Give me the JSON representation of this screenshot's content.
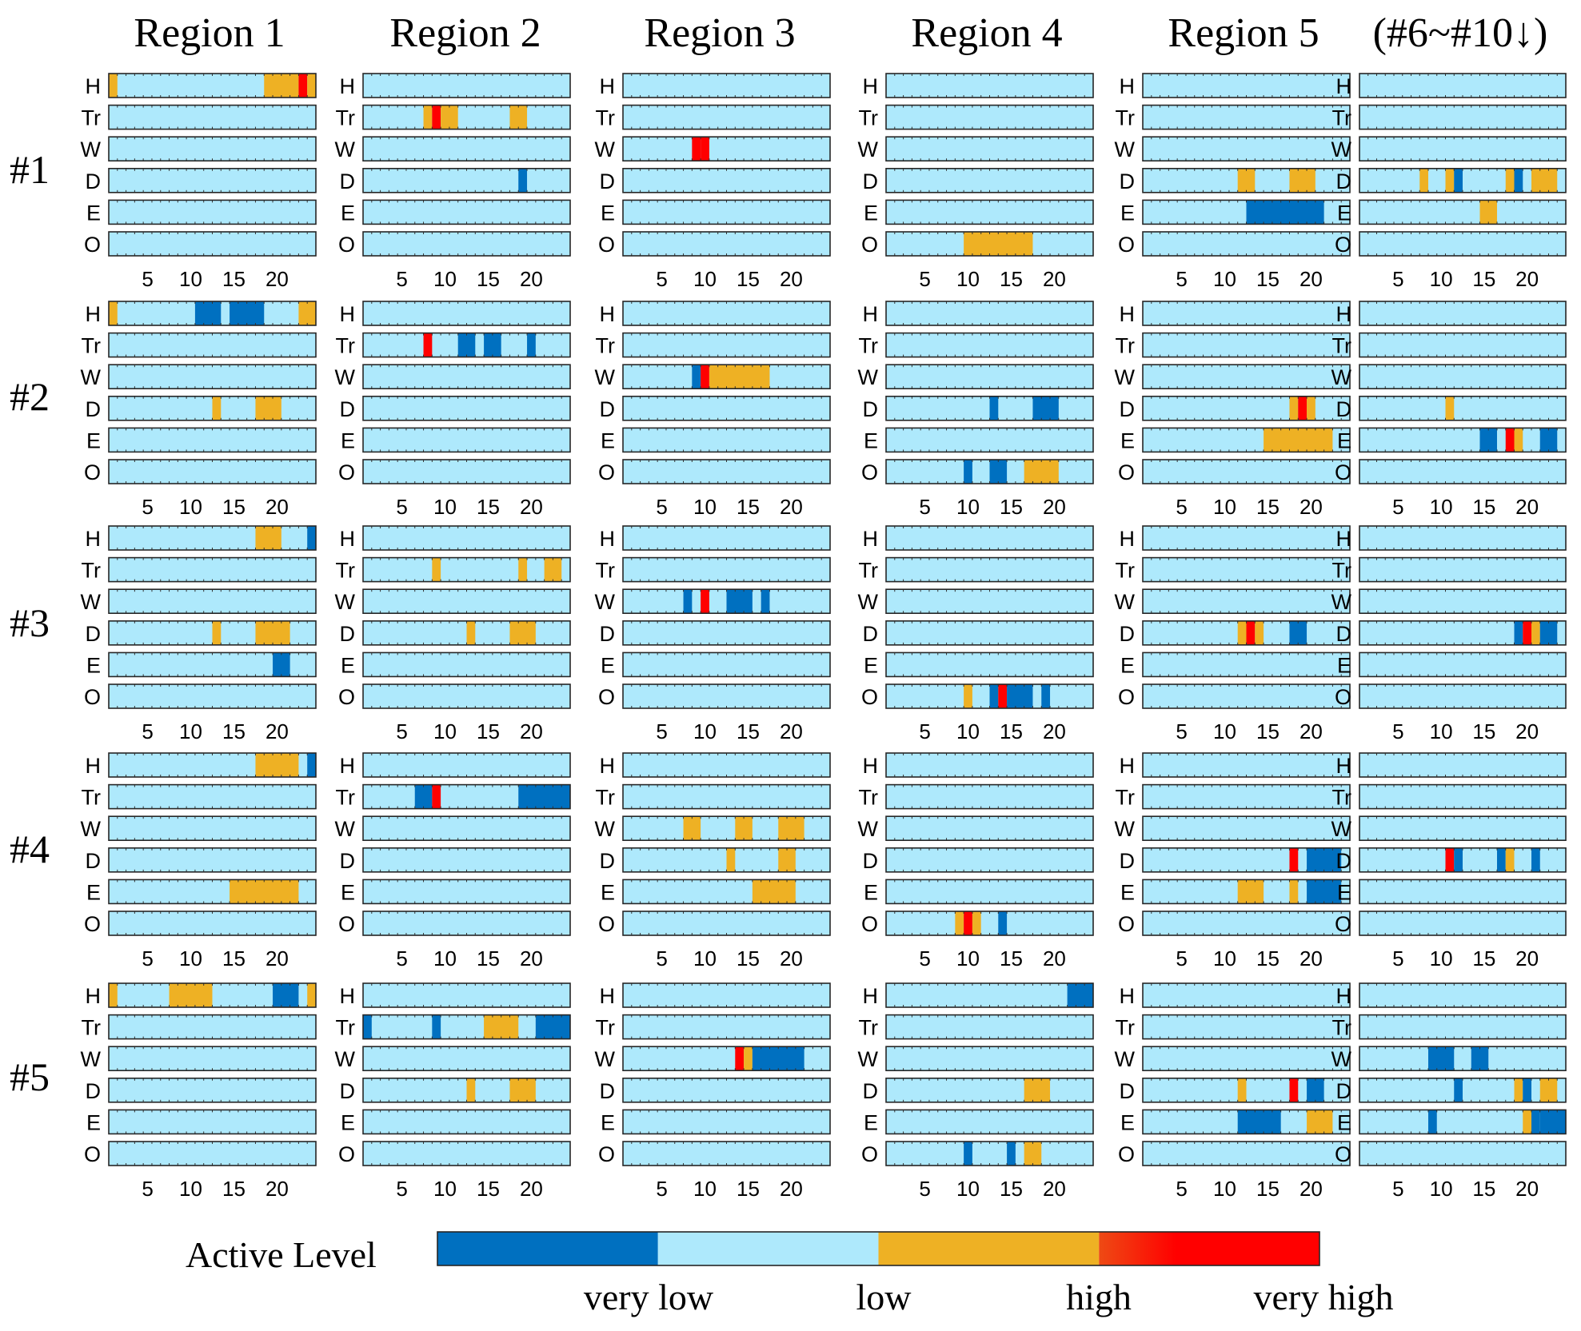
{
  "chart_data": {
    "type": "heatmap",
    "title": "",
    "column_titles": [
      "Region 1",
      "Region 2",
      "Region 3",
      "Region 4",
      "Region 5",
      "(#6~#10↓)"
    ],
    "row_titles": [
      "#1",
      "#2",
      "#3",
      "#4",
      "#5"
    ],
    "activities": [
      "H",
      "Tr",
      "W",
      "D",
      "E",
      "O"
    ],
    "hours_range": [
      1,
      24
    ],
    "xticks": [
      5,
      10,
      15,
      20
    ],
    "level_names": [
      "very low",
      "low",
      "high",
      "very high"
    ],
    "colors": {
      "very_low": "#0070c0",
      "low": "#aee9fc",
      "high": "#eeb124",
      "very_high": "#ff0000"
    },
    "colorbar_label": "Active Level",
    "encoding": "Each panel shows 6 activity rows over 24 hours. Default level is 'low'. Segments list [start_hour, end_hour, level] with levels: vl=very low, h=high, vh=very high.",
    "panels": [
      [
        {
          "H": [
            [
              1,
              1,
              "h"
            ],
            [
              19,
              22,
              "h"
            ],
            [
              23,
              23,
              "vh"
            ],
            [
              24,
              24,
              "h"
            ]
          ],
          "Tr": [],
          "W": [],
          "D": [],
          "E": [],
          "O": []
        },
        {
          "H": [],
          "Tr": [
            [
              8,
              8,
              "h"
            ],
            [
              9,
              9,
              "vh"
            ],
            [
              10,
              11,
              "h"
            ],
            [
              18,
              19,
              "h"
            ]
          ],
          "W": [],
          "D": [
            [
              19,
              19,
              "vl"
            ]
          ],
          "E": [],
          "O": []
        },
        {
          "H": [],
          "Tr": [],
          "W": [
            [
              9,
              9,
              "vh"
            ],
            [
              10,
              10,
              "vh"
            ]
          ],
          "D": [],
          "E": [],
          "O": []
        },
        {
          "H": [],
          "Tr": [],
          "W": [],
          "D": [],
          "E": [],
          "O": [
            [
              10,
              17,
              "h"
            ]
          ]
        },
        {
          "H": [],
          "Tr": [],
          "W": [],
          "D": [
            [
              12,
              13,
              "h"
            ],
            [
              18,
              20,
              "h"
            ]
          ],
          "E": [
            [
              13,
              21,
              "vl"
            ]
          ],
          "O": []
        },
        {
          "H": [],
          "Tr": [],
          "W": [],
          "D": [
            [
              8,
              8,
              "h"
            ],
            [
              11,
              11,
              "h"
            ],
            [
              12,
              12,
              "vl"
            ],
            [
              18,
              18,
              "h"
            ],
            [
              19,
              19,
              "vl"
            ],
            [
              21,
              23,
              "h"
            ]
          ],
          "E": [
            [
              15,
              16,
              "h"
            ]
          ],
          "O": []
        }
      ],
      [
        {
          "H": [
            [
              1,
              1,
              "h"
            ],
            [
              11,
              13,
              "vl"
            ],
            [
              15,
              18,
              "vl"
            ],
            [
              23,
              24,
              "h"
            ]
          ],
          "Tr": [],
          "W": [],
          "D": [
            [
              13,
              13,
              "h"
            ],
            [
              18,
              20,
              "h"
            ]
          ],
          "E": [],
          "O": []
        },
        {
          "H": [],
          "Tr": [
            [
              8,
              8,
              "vh"
            ],
            [
              12,
              13,
              "vl"
            ],
            [
              15,
              16,
              "vl"
            ],
            [
              20,
              20,
              "vl"
            ]
          ],
          "W": [],
          "D": [],
          "E": [],
          "O": []
        },
        {
          "H": [],
          "Tr": [],
          "W": [
            [
              9,
              9,
              "vl"
            ],
            [
              10,
              10,
              "vh"
            ],
            [
              11,
              17,
              "h"
            ]
          ],
          "D": [],
          "E": [],
          "O": []
        },
        {
          "H": [],
          "Tr": [],
          "W": [],
          "D": [
            [
              13,
              13,
              "vl"
            ],
            [
              18,
              20,
              "vl"
            ]
          ],
          "E": [],
          "O": [
            [
              10,
              10,
              "vl"
            ],
            [
              13,
              14,
              "vl"
            ],
            [
              17,
              20,
              "h"
            ]
          ]
        },
        {
          "H": [],
          "Tr": [],
          "W": [],
          "D": [
            [
              18,
              18,
              "h"
            ],
            [
              19,
              19,
              "vh"
            ],
            [
              20,
              20,
              "h"
            ]
          ],
          "E": [
            [
              15,
              22,
              "h"
            ]
          ],
          "O": []
        },
        {
          "H": [],
          "Tr": [],
          "W": [],
          "D": [
            [
              11,
              11,
              "h"
            ]
          ],
          "E": [
            [
              15,
              16,
              "vl"
            ],
            [
              18,
              18,
              "vh"
            ],
            [
              19,
              19,
              "h"
            ],
            [
              22,
              23,
              "vl"
            ]
          ],
          "O": []
        }
      ],
      [
        {
          "H": [
            [
              18,
              20,
              "h"
            ],
            [
              24,
              24,
              "vl"
            ]
          ],
          "Tr": [],
          "W": [],
          "D": [
            [
              13,
              13,
              "h"
            ],
            [
              18,
              21,
              "h"
            ]
          ],
          "E": [
            [
              20,
              21,
              "vl"
            ]
          ],
          "O": []
        },
        {
          "H": [],
          "Tr": [
            [
              9,
              9,
              "h"
            ],
            [
              19,
              19,
              "h"
            ],
            [
              22,
              23,
              "h"
            ]
          ],
          "W": [],
          "D": [
            [
              13,
              13,
              "h"
            ],
            [
              18,
              20,
              "h"
            ]
          ],
          "E": [],
          "O": []
        },
        {
          "H": [],
          "Tr": [],
          "W": [
            [
              8,
              8,
              "vl"
            ],
            [
              10,
              10,
              "vh"
            ],
            [
              13,
              15,
              "vl"
            ],
            [
              17,
              17,
              "vl"
            ]
          ],
          "D": [],
          "E": [],
          "O": []
        },
        {
          "H": [],
          "Tr": [],
          "W": [],
          "D": [],
          "E": [],
          "O": [
            [
              10,
              10,
              "h"
            ],
            [
              13,
              13,
              "vl"
            ],
            [
              14,
              14,
              "vh"
            ],
            [
              15,
              17,
              "vl"
            ],
            [
              19,
              19,
              "vl"
            ]
          ]
        },
        {
          "H": [],
          "Tr": [],
          "W": [],
          "D": [
            [
              12,
              12,
              "h"
            ],
            [
              13,
              13,
              "vh"
            ],
            [
              14,
              14,
              "h"
            ],
            [
              18,
              19,
              "vl"
            ]
          ],
          "E": [],
          "O": []
        },
        {
          "H": [],
          "Tr": [],
          "W": [],
          "D": [
            [
              19,
              19,
              "vl"
            ],
            [
              20,
              20,
              "vh"
            ],
            [
              21,
              21,
              "h"
            ],
            [
              22,
              23,
              "vl"
            ]
          ],
          "E": [],
          "O": []
        }
      ],
      [
        {
          "H": [
            [
              18,
              22,
              "h"
            ],
            [
              24,
              24,
              "vl"
            ]
          ],
          "Tr": [],
          "W": [],
          "D": [],
          "E": [
            [
              15,
              22,
              "h"
            ]
          ],
          "O": []
        },
        {
          "H": [],
          "Tr": [
            [
              7,
              8,
              "vl"
            ],
            [
              9,
              9,
              "vh"
            ],
            [
              19,
              24,
              "vl"
            ]
          ],
          "W": [],
          "D": [],
          "E": [],
          "O": []
        },
        {
          "H": [],
          "Tr": [],
          "W": [
            [
              8,
              9,
              "h"
            ],
            [
              14,
              15,
              "h"
            ],
            [
              19,
              21,
              "h"
            ]
          ],
          "D": [
            [
              13,
              13,
              "h"
            ],
            [
              19,
              20,
              "h"
            ]
          ],
          "E": [
            [
              16,
              20,
              "h"
            ]
          ],
          "O": []
        },
        {
          "H": [],
          "Tr": [],
          "W": [],
          "D": [],
          "E": [],
          "O": [
            [
              9,
              9,
              "h"
            ],
            [
              10,
              10,
              "vh"
            ],
            [
              11,
              11,
              "h"
            ],
            [
              14,
              14,
              "vl"
            ]
          ]
        },
        {
          "H": [],
          "Tr": [],
          "W": [],
          "D": [
            [
              18,
              18,
              "vh"
            ],
            [
              20,
              23,
              "vl"
            ]
          ],
          "E": [
            [
              12,
              14,
              "h"
            ],
            [
              18,
              18,
              "h"
            ],
            [
              20,
              23,
              "vl"
            ]
          ],
          "O": []
        },
        {
          "H": [],
          "Tr": [],
          "W": [],
          "D": [
            [
              11,
              11,
              "vh"
            ],
            [
              12,
              12,
              "vl"
            ],
            [
              17,
              17,
              "vl"
            ],
            [
              18,
              18,
              "h"
            ],
            [
              21,
              21,
              "vl"
            ]
          ],
          "E": [],
          "O": []
        }
      ],
      [
        {
          "H": [
            [
              1,
              1,
              "h"
            ],
            [
              8,
              12,
              "h"
            ],
            [
              20,
              22,
              "vl"
            ],
            [
              24,
              24,
              "h"
            ]
          ],
          "Tr": [],
          "W": [],
          "D": [],
          "E": [],
          "O": []
        },
        {
          "H": [],
          "Tr": [
            [
              1,
              1,
              "vl"
            ],
            [
              9,
              9,
              "vl"
            ],
            [
              15,
              18,
              "h"
            ],
            [
              21,
              24,
              "vl"
            ]
          ],
          "W": [],
          "D": [
            [
              13,
              13,
              "h"
            ],
            [
              18,
              20,
              "h"
            ]
          ],
          "E": [],
          "O": []
        },
        {
          "H": [],
          "Tr": [],
          "W": [
            [
              14,
              14,
              "vh"
            ],
            [
              15,
              15,
              "h"
            ],
            [
              16,
              21,
              "vl"
            ]
          ],
          "D": [],
          "E": [],
          "O": []
        },
        {
          "H": [
            [
              22,
              24,
              "vl"
            ]
          ],
          "Tr": [],
          "W": [],
          "D": [
            [
              17,
              19,
              "h"
            ]
          ],
          "E": [],
          "O": [
            [
              10,
              10,
              "vl"
            ],
            [
              15,
              15,
              "vl"
            ],
            [
              17,
              18,
              "h"
            ]
          ]
        },
        {
          "H": [],
          "Tr": [],
          "W": [],
          "D": [
            [
              12,
              12,
              "h"
            ],
            [
              18,
              18,
              "vh"
            ],
            [
              20,
              21,
              "vl"
            ]
          ],
          "E": [
            [
              12,
              16,
              "vl"
            ],
            [
              20,
              22,
              "h"
            ]
          ],
          "O": []
        },
        {
          "H": [],
          "Tr": [],
          "W": [
            [
              9,
              11,
              "vl"
            ],
            [
              14,
              15,
              "vl"
            ]
          ],
          "D": [
            [
              12,
              12,
              "vl"
            ],
            [
              19,
              19,
              "h"
            ],
            [
              20,
              20,
              "vl"
            ],
            [
              22,
              23,
              "h"
            ]
          ],
          "E": [
            [
              9,
              9,
              "vl"
            ],
            [
              20,
              20,
              "h"
            ],
            [
              21,
              21,
              "vl"
            ],
            [
              22,
              24,
              "vl"
            ]
          ],
          "O": []
        }
      ]
    ]
  }
}
